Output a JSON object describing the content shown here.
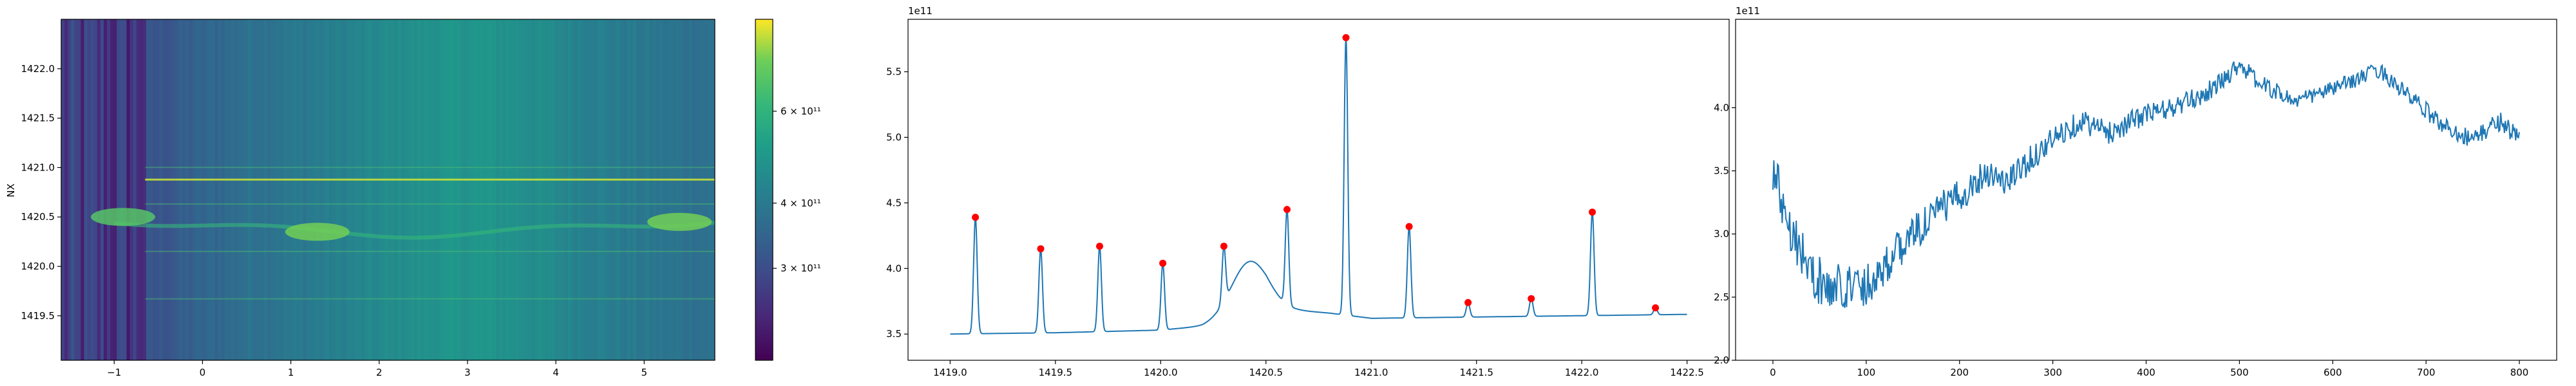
{
  "chart_data": [
    {
      "type": "heatmap",
      "xlabel": "",
      "ylabel": "NX",
      "xlim": [
        -1.6,
        5.8
      ],
      "ylim": [
        1419.05,
        1422.5
      ],
      "xticks": [
        -1,
        0,
        1,
        2,
        3,
        4,
        5
      ],
      "xtick_labels": [
        "−1",
        "0",
        "1",
        "2",
        "3",
        "4",
        "5"
      ],
      "yticks": [
        1419.5,
        1420.0,
        1420.5,
        1421.0,
        1421.5,
        1422.0
      ],
      "ytick_labels": [
        "1419.5",
        "1420.0",
        "1420.5",
        "1421.0",
        "1421.5",
        "1422.0"
      ],
      "colormap": "viridis",
      "colorbar": {
        "scale": "log",
        "range": [
          200000000000.0,
          900000000000.0
        ],
        "ticks": [
          300000000000.0,
          400000000000.0,
          600000000000.0
        ],
        "tick_labels": [
          "3 × 10¹¹",
          "4 × 10¹¹",
          "6 × 10¹¹"
        ]
      },
      "bright_rows_y": [
        1420.88,
        1420.15,
        1421.0,
        1420.63,
        1419.67
      ],
      "features": [
        {
          "x": -0.9,
          "y": 1420.5,
          "value": 600000000000.0
        },
        {
          "x": 1.3,
          "y": 1420.35,
          "value": 650000000000.0
        },
        {
          "x": 5.4,
          "y": 1420.45,
          "value": 650000000000.0
        }
      ]
    },
    {
      "type": "line",
      "title": "",
      "offset_text": "1e11",
      "xlabel": "",
      "ylabel": "",
      "xlim": [
        1418.8,
        1422.7
      ],
      "ylim": [
        3.3,
        5.9
      ],
      "xticks": [
        1419.0,
        1419.5,
        1420.0,
        1420.5,
        1421.0,
        1421.5,
        1422.0,
        1422.5
      ],
      "xtick_labels": [
        "1419.0",
        "1419.5",
        "1420.0",
        "1420.5",
        "1421.0",
        "1421.5",
        "1422.0",
        "1422.5"
      ],
      "yticks": [
        3.5,
        4.0,
        4.5,
        5.0,
        5.5
      ],
      "ytick_labels": [
        "3.5",
        "4.0",
        "4.5",
        "5.0",
        "5.5"
      ],
      "series_color": "#1f77b4",
      "marker_color": "#ff0000",
      "baseline": [
        [
          1419.0,
          3.5
        ],
        [
          1419.5,
          3.51
        ],
        [
          1420.0,
          3.53
        ],
        [
          1420.2,
          3.56
        ],
        [
          1420.5,
          3.7
        ],
        [
          1420.8,
          3.66
        ],
        [
          1421.0,
          3.62
        ],
        [
          1421.5,
          3.63
        ],
        [
          1422.0,
          3.64
        ],
        [
          1422.5,
          3.65
        ]
      ],
      "peaks": [
        {
          "x": 1419.12,
          "y": 4.39
        },
        {
          "x": 1419.43,
          "y": 4.15
        },
        {
          "x": 1419.71,
          "y": 4.17
        },
        {
          "x": 1420.01,
          "y": 4.04
        },
        {
          "x": 1420.3,
          "y": 4.17
        },
        {
          "x": 1420.6,
          "y": 4.45
        },
        {
          "x": 1420.88,
          "y": 5.76
        },
        {
          "x": 1421.18,
          "y": 4.32
        },
        {
          "x": 1421.46,
          "y": 3.74
        },
        {
          "x": 1421.76,
          "y": 3.77
        },
        {
          "x": 1422.05,
          "y": 4.43
        },
        {
          "x": 1422.35,
          "y": 3.7
        }
      ],
      "bump": {
        "x": 1420.42,
        "y": 4.07
      }
    },
    {
      "type": "line",
      "title": "",
      "offset_text": "1e11",
      "xlabel": "",
      "ylabel": "",
      "xlim": [
        -40,
        840
      ],
      "ylim": [
        2.0,
        4.7
      ],
      "xticks": [
        0,
        100,
        200,
        300,
        400,
        500,
        600,
        700,
        800
      ],
      "xtick_labels": [
        "0",
        "100",
        "200",
        "300",
        "400",
        "500",
        "600",
        "700",
        "800"
      ],
      "yticks": [
        2.0,
        2.5,
        3.0,
        3.5,
        4.0
      ],
      "ytick_labels": [
        "2.0",
        "2.5",
        "3.0",
        "3.5",
        "4.0"
      ],
      "series_color": "#1f77b4",
      "trend": [
        [
          0,
          3.5
        ],
        [
          20,
          3.05
        ],
        [
          40,
          2.7
        ],
        [
          60,
          2.55
        ],
        [
          80,
          2.6
        ],
        [
          100,
          2.6
        ],
        [
          120,
          2.75
        ],
        [
          150,
          3.0
        ],
        [
          180,
          3.2
        ],
        [
          200,
          3.3
        ],
        [
          230,
          3.5
        ],
        [
          250,
          3.4
        ],
        [
          270,
          3.55
        ],
        [
          300,
          3.75
        ],
        [
          330,
          3.9
        ],
        [
          360,
          3.8
        ],
        [
          400,
          3.95
        ],
        [
          430,
          4.0
        ],
        [
          460,
          4.1
        ],
        [
          480,
          4.2
        ],
        [
          500,
          4.35
        ],
        [
          520,
          4.2
        ],
        [
          560,
          4.05
        ],
        [
          600,
          4.15
        ],
        [
          650,
          4.3
        ],
        [
          680,
          4.1
        ],
        [
          720,
          3.85
        ],
        [
          750,
          3.75
        ],
        [
          780,
          3.9
        ],
        [
          800,
          3.75
        ]
      ],
      "noise_amplitude": [
        [
          0,
          0.22
        ],
        [
          150,
          0.15
        ],
        [
          300,
          0.1
        ],
        [
          600,
          0.06
        ],
        [
          800,
          0.08
        ]
      ]
    }
  ]
}
